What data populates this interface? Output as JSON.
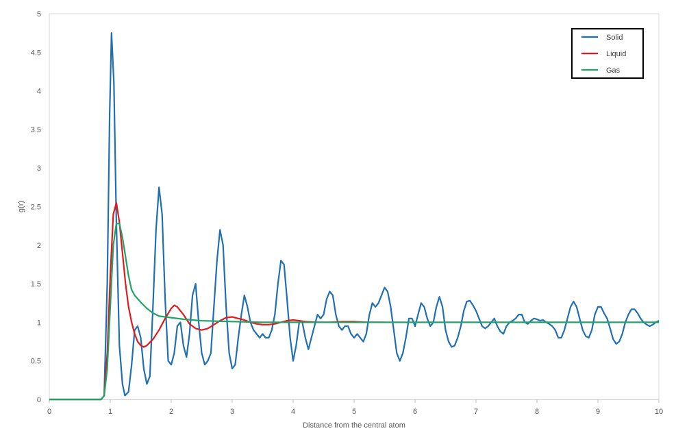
{
  "chart_data": {
    "type": "line",
    "title": "",
    "xlabel": "Distance from the central atom",
    "ylabel": "g(r)",
    "xlim": [
      0,
      10
    ],
    "ylim": [
      0,
      5
    ],
    "x_ticks": [
      "0",
      "1",
      "2",
      "3",
      "4",
      "5",
      "6",
      "7",
      "8",
      "9",
      "10"
    ],
    "y_ticks": [
      "0",
      "0.5",
      "1",
      "1.5",
      "2",
      "2.5",
      "3",
      "3.5",
      "4",
      "4.5",
      "5"
    ],
    "grid": false,
    "legend_position": "top-right",
    "series": [
      {
        "name": "Solid",
        "color": "#1F6FB4",
        "points": [
          [
            0,
            0
          ],
          [
            0.85,
            0
          ],
          [
            0.9,
            0.05
          ],
          [
            0.95,
            1.5
          ],
          [
            0.99,
            3.7
          ],
          [
            1.02,
            4.75
          ],
          [
            1.06,
            4.1
          ],
          [
            1.1,
            2.3
          ],
          [
            1.15,
            0.7
          ],
          [
            1.2,
            0.2
          ],
          [
            1.24,
            0.05
          ],
          [
            1.3,
            0.1
          ],
          [
            1.35,
            0.45
          ],
          [
            1.4,
            0.9
          ],
          [
            1.45,
            0.95
          ],
          [
            1.5,
            0.8
          ],
          [
            1.55,
            0.4
          ],
          [
            1.6,
            0.2
          ],
          [
            1.65,
            0.3
          ],
          [
            1.7,
            1.2
          ],
          [
            1.75,
            2.2
          ],
          [
            1.8,
            2.75
          ],
          [
            1.85,
            2.4
          ],
          [
            1.9,
            1.3
          ],
          [
            1.95,
            0.5
          ],
          [
            2.0,
            0.45
          ],
          [
            2.05,
            0.6
          ],
          [
            2.1,
            0.95
          ],
          [
            2.15,
            1.0
          ],
          [
            2.2,
            0.7
          ],
          [
            2.25,
            0.55
          ],
          [
            2.3,
            0.85
          ],
          [
            2.35,
            1.35
          ],
          [
            2.4,
            1.5
          ],
          [
            2.45,
            1.0
          ],
          [
            2.5,
            0.6
          ],
          [
            2.55,
            0.45
          ],
          [
            2.6,
            0.5
          ],
          [
            2.65,
            0.6
          ],
          [
            2.7,
            1.2
          ],
          [
            2.75,
            1.8
          ],
          [
            2.8,
            2.2
          ],
          [
            2.85,
            2.0
          ],
          [
            2.9,
            1.2
          ],
          [
            2.95,
            0.6
          ],
          [
            3.0,
            0.4
          ],
          [
            3.05,
            0.45
          ],
          [
            3.1,
            0.8
          ],
          [
            3.15,
            1.1
          ],
          [
            3.2,
            1.35
          ],
          [
            3.25,
            1.2
          ],
          [
            3.3,
            1.0
          ],
          [
            3.35,
            0.9
          ],
          [
            3.4,
            0.85
          ],
          [
            3.45,
            0.8
          ],
          [
            3.5,
            0.85
          ],
          [
            3.55,
            0.8
          ],
          [
            3.6,
            0.8
          ],
          [
            3.65,
            0.9
          ],
          [
            3.7,
            1.1
          ],
          [
            3.75,
            1.5
          ],
          [
            3.8,
            1.8
          ],
          [
            3.85,
            1.75
          ],
          [
            3.9,
            1.3
          ],
          [
            3.95,
            0.8
          ],
          [
            4.0,
            0.5
          ],
          [
            4.05,
            0.7
          ],
          [
            4.1,
            1.0
          ],
          [
            4.15,
            1.0
          ],
          [
            4.2,
            0.8
          ],
          [
            4.25,
            0.65
          ],
          [
            4.3,
            0.8
          ],
          [
            4.35,
            0.95
          ],
          [
            4.4,
            1.1
          ],
          [
            4.45,
            1.05
          ],
          [
            4.5,
            1.1
          ],
          [
            4.55,
            1.3
          ],
          [
            4.6,
            1.4
          ],
          [
            4.65,
            1.35
          ],
          [
            4.7,
            1.1
          ],
          [
            4.75,
            0.95
          ],
          [
            4.8,
            0.9
          ],
          [
            4.85,
            0.95
          ],
          [
            4.9,
            0.95
          ],
          [
            4.95,
            0.85
          ],
          [
            5.0,
            0.8
          ],
          [
            5.05,
            0.85
          ],
          [
            5.1,
            0.8
          ],
          [
            5.15,
            0.75
          ],
          [
            5.2,
            0.85
          ],
          [
            5.25,
            1.1
          ],
          [
            5.3,
            1.25
          ],
          [
            5.35,
            1.2
          ],
          [
            5.4,
            1.25
          ],
          [
            5.45,
            1.35
          ],
          [
            5.5,
            1.45
          ],
          [
            5.55,
            1.4
          ],
          [
            5.6,
            1.2
          ],
          [
            5.65,
            0.9
          ],
          [
            5.7,
            0.6
          ],
          [
            5.75,
            0.5
          ],
          [
            5.8,
            0.6
          ],
          [
            5.85,
            0.8
          ],
          [
            5.9,
            1.05
          ],
          [
            5.95,
            1.05
          ],
          [
            6.0,
            0.95
          ],
          [
            6.05,
            1.1
          ],
          [
            6.1,
            1.25
          ],
          [
            6.15,
            1.2
          ],
          [
            6.2,
            1.05
          ],
          [
            6.25,
            0.95
          ],
          [
            6.3,
            1.0
          ],
          [
            6.35,
            1.2
          ],
          [
            6.4,
            1.33
          ],
          [
            6.45,
            1.2
          ],
          [
            6.5,
            0.9
          ],
          [
            6.55,
            0.75
          ],
          [
            6.6,
            0.68
          ],
          [
            6.65,
            0.7
          ],
          [
            6.7,
            0.8
          ],
          [
            6.75,
            0.95
          ],
          [
            6.8,
            1.15
          ],
          [
            6.85,
            1.27
          ],
          [
            6.9,
            1.28
          ],
          [
            6.95,
            1.22
          ],
          [
            7.0,
            1.15
          ],
          [
            7.05,
            1.05
          ],
          [
            7.1,
            0.95
          ],
          [
            7.15,
            0.92
          ],
          [
            7.2,
            0.95
          ],
          [
            7.25,
            1.0
          ],
          [
            7.3,
            1.05
          ],
          [
            7.35,
            0.95
          ],
          [
            7.4,
            0.88
          ],
          [
            7.45,
            0.85
          ],
          [
            7.5,
            0.95
          ],
          [
            7.55,
            1.0
          ],
          [
            7.6,
            1.02
          ],
          [
            7.65,
            1.05
          ],
          [
            7.7,
            1.1
          ],
          [
            7.75,
            1.1
          ],
          [
            7.8,
            1.0
          ],
          [
            7.85,
            0.98
          ],
          [
            7.9,
            1.02
          ],
          [
            7.95,
            1.05
          ],
          [
            8.0,
            1.04
          ],
          [
            8.05,
            1.02
          ],
          [
            8.1,
            1.03
          ],
          [
            8.15,
            1.0
          ],
          [
            8.2,
            0.98
          ],
          [
            8.25,
            0.95
          ],
          [
            8.3,
            0.9
          ],
          [
            8.35,
            0.8
          ],
          [
            8.4,
            0.8
          ],
          [
            8.45,
            0.9
          ],
          [
            8.5,
            1.05
          ],
          [
            8.55,
            1.2
          ],
          [
            8.6,
            1.27
          ],
          [
            8.65,
            1.2
          ],
          [
            8.7,
            1.05
          ],
          [
            8.75,
            0.9
          ],
          [
            8.8,
            0.82
          ],
          [
            8.85,
            0.8
          ],
          [
            8.9,
            0.9
          ],
          [
            8.95,
            1.1
          ],
          [
            9.0,
            1.2
          ],
          [
            9.05,
            1.2
          ],
          [
            9.1,
            1.12
          ],
          [
            9.15,
            1.05
          ],
          [
            9.2,
            0.92
          ],
          [
            9.25,
            0.78
          ],
          [
            9.3,
            0.72
          ],
          [
            9.35,
            0.75
          ],
          [
            9.4,
            0.85
          ],
          [
            9.45,
            1.0
          ],
          [
            9.5,
            1.1
          ],
          [
            9.55,
            1.17
          ],
          [
            9.6,
            1.17
          ],
          [
            9.65,
            1.12
          ],
          [
            9.7,
            1.05
          ],
          [
            9.75,
            1.0
          ],
          [
            9.8,
            0.97
          ],
          [
            9.85,
            0.95
          ],
          [
            9.9,
            0.97
          ],
          [
            9.95,
            1.0
          ],
          [
            10.0,
            1.02
          ]
        ]
      },
      {
        "name": "Liquid",
        "color": "#E31A1C",
        "points": [
          [
            0,
            0
          ],
          [
            0.85,
            0
          ],
          [
            0.9,
            0.05
          ],
          [
            0.95,
            0.6
          ],
          [
            1.0,
            1.6
          ],
          [
            1.05,
            2.4
          ],
          [
            1.1,
            2.55
          ],
          [
            1.15,
            2.3
          ],
          [
            1.2,
            1.9
          ],
          [
            1.25,
            1.5
          ],
          [
            1.3,
            1.2
          ],
          [
            1.35,
            1.0
          ],
          [
            1.4,
            0.85
          ],
          [
            1.45,
            0.75
          ],
          [
            1.5,
            0.7
          ],
          [
            1.55,
            0.68
          ],
          [
            1.6,
            0.7
          ],
          [
            1.7,
            0.78
          ],
          [
            1.8,
            0.9
          ],
          [
            1.9,
            1.05
          ],
          [
            2.0,
            1.18
          ],
          [
            2.05,
            1.22
          ],
          [
            2.1,
            1.2
          ],
          [
            2.2,
            1.1
          ],
          [
            2.3,
            0.98
          ],
          [
            2.4,
            0.92
          ],
          [
            2.5,
            0.9
          ],
          [
            2.6,
            0.92
          ],
          [
            2.7,
            0.97
          ],
          [
            2.8,
            1.02
          ],
          [
            2.9,
            1.06
          ],
          [
            3.0,
            1.07
          ],
          [
            3.1,
            1.05
          ],
          [
            3.2,
            1.03
          ],
          [
            3.3,
            1.0
          ],
          [
            3.4,
            0.98
          ],
          [
            3.5,
            0.97
          ],
          [
            3.6,
            0.97
          ],
          [
            3.7,
            0.98
          ],
          [
            3.8,
            1.0
          ],
          [
            3.9,
            1.02
          ],
          [
            4.0,
            1.03
          ],
          [
            4.1,
            1.02
          ],
          [
            4.2,
            1.01
          ],
          [
            4.4,
            1.0
          ],
          [
            4.6,
            1.0
          ],
          [
            4.8,
            1.01
          ],
          [
            5.0,
            1.01
          ],
          [
            5.2,
            1.0
          ],
          [
            5.4,
            1.0
          ],
          [
            5.5,
            1.0
          ]
        ]
      },
      {
        "name": "Gas",
        "color": "#21A366",
        "points": [
          [
            0,
            0
          ],
          [
            0.85,
            0
          ],
          [
            0.9,
            0.05
          ],
          [
            0.95,
            0.4
          ],
          [
            1.0,
            1.2
          ],
          [
            1.05,
            2.0
          ],
          [
            1.1,
            2.28
          ],
          [
            1.15,
            2.28
          ],
          [
            1.2,
            2.1
          ],
          [
            1.25,
            1.85
          ],
          [
            1.3,
            1.6
          ],
          [
            1.35,
            1.42
          ],
          [
            1.4,
            1.35
          ],
          [
            1.5,
            1.26
          ],
          [
            1.6,
            1.18
          ],
          [
            1.7,
            1.12
          ],
          [
            1.8,
            1.08
          ],
          [
            2.0,
            1.06
          ],
          [
            2.2,
            1.04
          ],
          [
            2.5,
            1.02
          ],
          [
            3.0,
            1.01
          ],
          [
            3.5,
            1.0
          ],
          [
            4.0,
            1.0
          ],
          [
            5.0,
            1.0
          ],
          [
            6.0,
            1.0
          ],
          [
            7.0,
            1.0
          ],
          [
            8.0,
            1.0
          ],
          [
            9.0,
            1.0
          ],
          [
            10.0,
            1.0
          ]
        ]
      }
    ]
  }
}
